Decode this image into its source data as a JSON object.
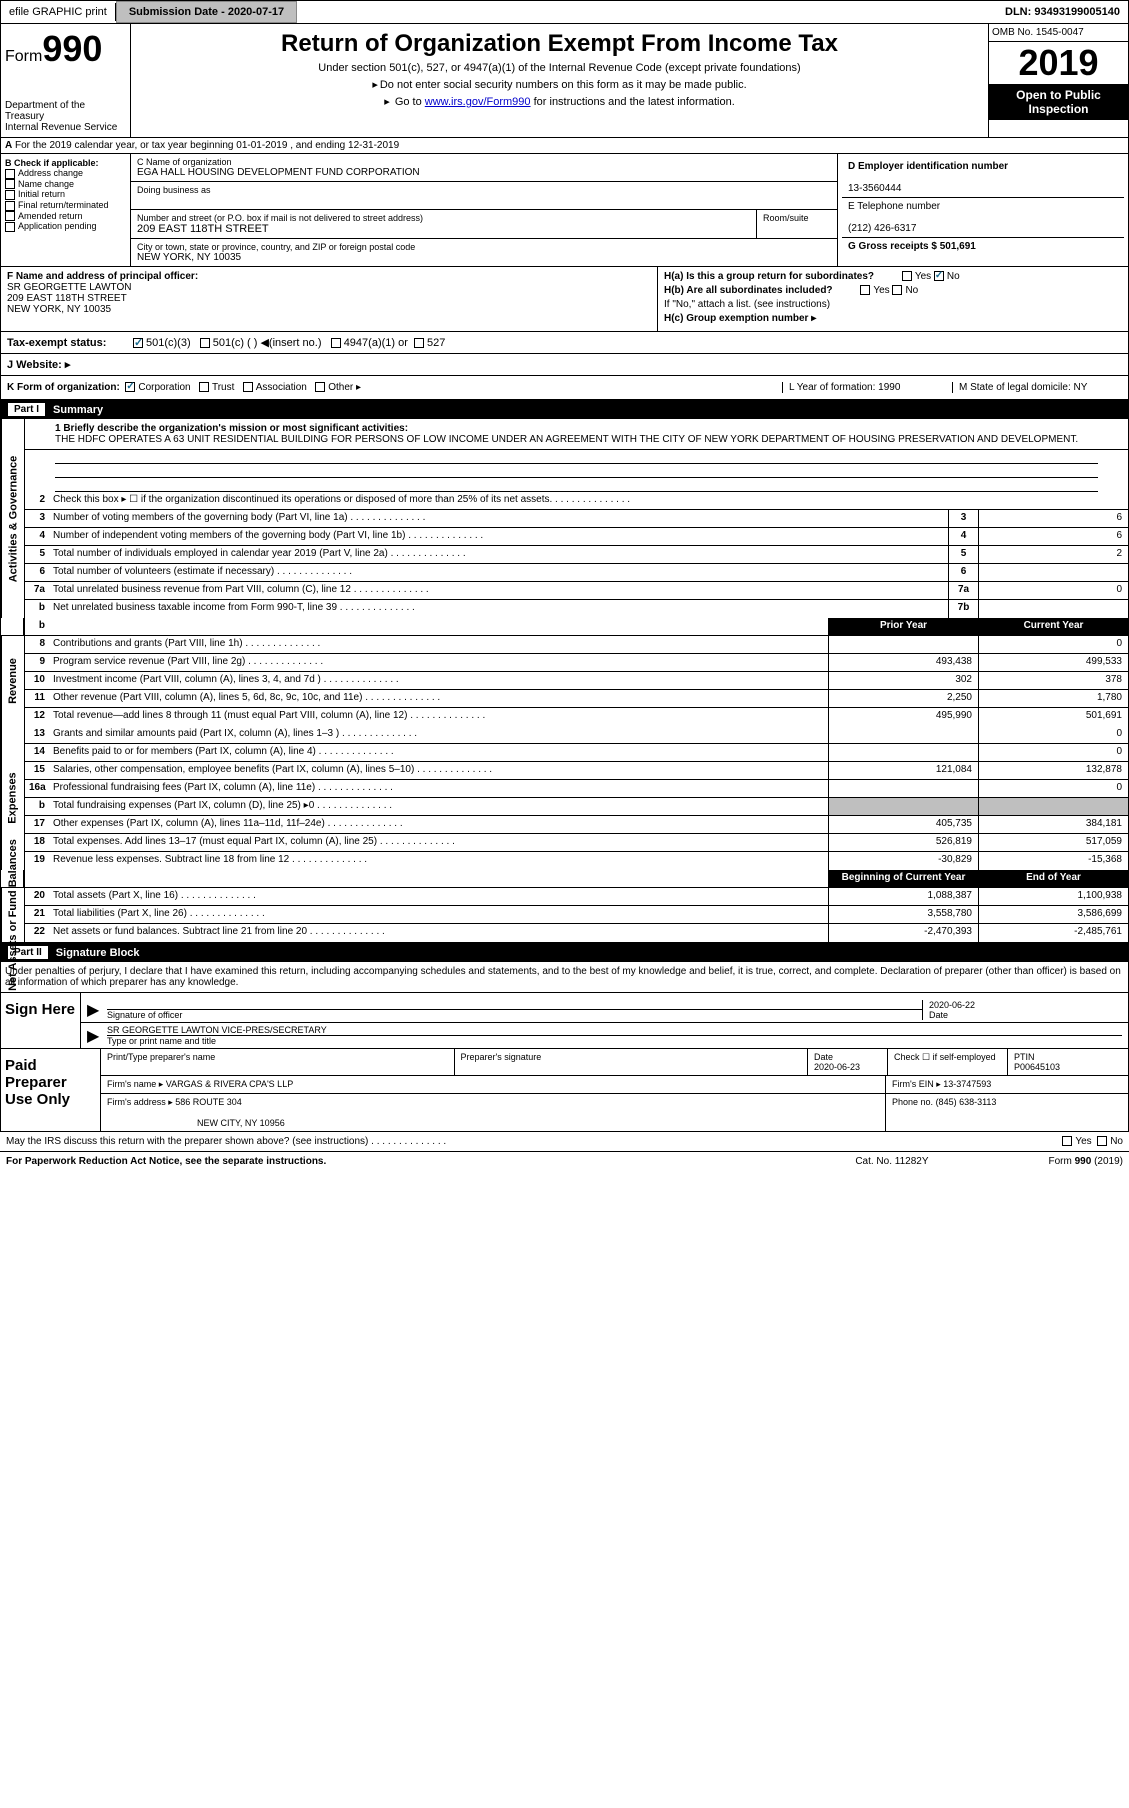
{
  "topbar": {
    "efile": "efile GRAPHIC print",
    "submission_label": "Submission Date - 2020-07-17",
    "dln": "DLN: 93493199005140"
  },
  "header": {
    "form_prefix": "Form",
    "form_num": "990",
    "dept1": "Department of the Treasury",
    "dept2": "Internal Revenue Service",
    "title": "Return of Organization Exempt From Income Tax",
    "sub1": "Under section 501(c), 527, or 4947(a)(1) of the Internal Revenue Code (except private foundations)",
    "sub2": "Do not enter social security numbers on this form as it may be made public.",
    "sub3_pre": "Go to ",
    "sub3_link": "www.irs.gov/Form990",
    "sub3_post": " for instructions and the latest information.",
    "omb": "OMB No. 1545-0047",
    "year": "2019",
    "inspection": "Open to Public Inspection"
  },
  "section_a": "For the 2019 calendar year, or tax year beginning 01-01-2019   , and ending 12-31-2019",
  "section_b": {
    "header": "B Check if applicable:",
    "items": [
      "Address change",
      "Name change",
      "Initial return",
      "Final return/terminated",
      "Amended return",
      "Application pending"
    ]
  },
  "section_c": {
    "name_label": "C Name of organization",
    "name": "EGA HALL HOUSING DEVELOPMENT FUND CORPORATION",
    "dba_label": "Doing business as",
    "addr_label": "Number and street (or P.O. box if mail is not delivered to street address)",
    "room_label": "Room/suite",
    "addr": "209 EAST 118TH STREET",
    "city_label": "City or town, state or province, country, and ZIP or foreign postal code",
    "city": "NEW YORK, NY  10035"
  },
  "section_d": {
    "ein_label": "D Employer identification number",
    "ein": "13-3560444",
    "phone_label": "E Telephone number",
    "phone": "(212) 426-6317",
    "gross_label": "G Gross receipts $ 501,691"
  },
  "section_f": {
    "label": "F  Name and address of principal officer:",
    "name": "SR GEORGETTE LAWTON",
    "addr": "209 EAST 118TH STREET",
    "city": "NEW YORK, NY 10035"
  },
  "section_h": {
    "ha": "H(a)  Is this a group return for subordinates?",
    "hb": "H(b)  Are all subordinates included?",
    "hb_note": "If \"No,\" attach a list. (see instructions)",
    "hc": "H(c)  Group exemption number ▸",
    "yes": "Yes",
    "no": "No"
  },
  "section_i": {
    "label": "Tax-exempt status:",
    "opts": [
      "501(c)(3)",
      "501(c) (  ) ◀(insert no.)",
      "4947(a)(1) or",
      "527"
    ]
  },
  "section_j": {
    "label": "J   Website: ▸"
  },
  "section_k": {
    "label": "K Form of organization:",
    "opts": [
      "Corporation",
      "Trust",
      "Association",
      "Other ▸"
    ],
    "l": "L Year of formation: 1990",
    "m": "M State of legal domicile: NY"
  },
  "part1": {
    "num": "Part I",
    "title": "Summary"
  },
  "mission": {
    "label": "1  Briefly describe the organization's mission or most significant activities:",
    "text": "THE HDFC OPERATES A 63 UNIT RESIDENTIAL BUILDING FOR PERSONS OF LOW INCOME UNDER AN AGREEMENT WITH THE CITY OF NEW YORK DEPARTMENT OF HOUSING PRESERVATION AND DEVELOPMENT."
  },
  "gov_rows": [
    {
      "n": "2",
      "t": "Check this box ▸ ☐ if the organization discontinued its operations or disposed of more than 25% of its net assets.",
      "box": "",
      "v": ""
    },
    {
      "n": "3",
      "t": "Number of voting members of the governing body (Part VI, line 1a)",
      "box": "3",
      "v": "6"
    },
    {
      "n": "4",
      "t": "Number of independent voting members of the governing body (Part VI, line 1b)",
      "box": "4",
      "v": "6"
    },
    {
      "n": "5",
      "t": "Total number of individuals employed in calendar year 2019 (Part V, line 2a)",
      "box": "5",
      "v": "2"
    },
    {
      "n": "6",
      "t": "Total number of volunteers (estimate if necessary)",
      "box": "6",
      "v": ""
    },
    {
      "n": "7a",
      "t": "Total unrelated business revenue from Part VIII, column (C), line 12",
      "box": "7a",
      "v": "0"
    },
    {
      "n": "b",
      "t": "Net unrelated business taxable income from Form 990-T, line 39",
      "box": "7b",
      "v": ""
    }
  ],
  "col_hdrs": {
    "prior": "Prior Year",
    "current": "Current Year"
  },
  "sides": {
    "gov": "Activities & Governance",
    "rev": "Revenue",
    "exp": "Expenses",
    "net": "Net Assets or Fund Balances"
  },
  "rev_rows": [
    {
      "n": "8",
      "t": "Contributions and grants (Part VIII, line 1h)",
      "p": "",
      "c": "0"
    },
    {
      "n": "9",
      "t": "Program service revenue (Part VIII, line 2g)",
      "p": "493,438",
      "c": "499,533"
    },
    {
      "n": "10",
      "t": "Investment income (Part VIII, column (A), lines 3, 4, and 7d )",
      "p": "302",
      "c": "378"
    },
    {
      "n": "11",
      "t": "Other revenue (Part VIII, column (A), lines 5, 6d, 8c, 9c, 10c, and 11e)",
      "p": "2,250",
      "c": "1,780"
    },
    {
      "n": "12",
      "t": "Total revenue—add lines 8 through 11 (must equal Part VIII, column (A), line 12)",
      "p": "495,990",
      "c": "501,691"
    }
  ],
  "exp_rows": [
    {
      "n": "13",
      "t": "Grants and similar amounts paid (Part IX, column (A), lines 1–3 )",
      "p": "",
      "c": "0"
    },
    {
      "n": "14",
      "t": "Benefits paid to or for members (Part IX, column (A), line 4)",
      "p": "",
      "c": "0"
    },
    {
      "n": "15",
      "t": "Salaries, other compensation, employee benefits (Part IX, column (A), lines 5–10)",
      "p": "121,084",
      "c": "132,878"
    },
    {
      "n": "16a",
      "t": "Professional fundraising fees (Part IX, column (A), line 11e)",
      "p": "",
      "c": "0"
    },
    {
      "n": "b",
      "t": "Total fundraising expenses (Part IX, column (D), line 25) ▸0",
      "p": "grey",
      "c": "grey"
    },
    {
      "n": "17",
      "t": "Other expenses (Part IX, column (A), lines 11a–11d, 11f–24e)",
      "p": "405,735",
      "c": "384,181"
    },
    {
      "n": "18",
      "t": "Total expenses. Add lines 13–17 (must equal Part IX, column (A), line 25)",
      "p": "526,819",
      "c": "517,059"
    },
    {
      "n": "19",
      "t": "Revenue less expenses. Subtract line 18 from line 12",
      "p": "-30,829",
      "c": "-15,368"
    }
  ],
  "net_hdrs": {
    "begin": "Beginning of Current Year",
    "end": "End of Year"
  },
  "net_rows": [
    {
      "n": "20",
      "t": "Total assets (Part X, line 16)",
      "p": "1,088,387",
      "c": "1,100,938"
    },
    {
      "n": "21",
      "t": "Total liabilities (Part X, line 26)",
      "p": "3,558,780",
      "c": "3,586,699"
    },
    {
      "n": "22",
      "t": "Net assets or fund balances. Subtract line 21 from line 20",
      "p": "-2,470,393",
      "c": "-2,485,761"
    }
  ],
  "part2": {
    "num": "Part II",
    "title": "Signature Block"
  },
  "sig": {
    "intro": "Under penalties of perjury, I declare that I have examined this return, including accompanying schedules and statements, and to the best of my knowledge and belief, it is true, correct, and complete. Declaration of preparer (other than officer) is based on all information of which preparer has any knowledge.",
    "sign_here": "Sign Here",
    "officer_sig": "Signature of officer",
    "date": "Date",
    "date_val": "2020-06-22",
    "officer_name": "SR GEORGETTE LAWTON  VICE-PRES/SECRETARY",
    "type_label": "Type or print name and title"
  },
  "prep": {
    "title": "Paid Preparer Use Only",
    "name_label": "Print/Type preparer's name",
    "sig_label": "Preparer's signature",
    "date_label": "Date",
    "date_val": "2020-06-23",
    "check_label": "Check ☐ if self-employed",
    "ptin_label": "PTIN",
    "ptin": "P00645103",
    "firm_name_label": "Firm's name   ▸",
    "firm_name": "VARGAS & RIVERA CPA'S LLP",
    "firm_ein_label": "Firm's EIN ▸",
    "firm_ein": "13-3747593",
    "firm_addr_label": "Firm's address ▸",
    "firm_addr": "586 ROUTE 304",
    "firm_city": "NEW CITY, NY  10956",
    "phone_label": "Phone no.",
    "phone": "(845) 638-3113"
  },
  "discuss": {
    "text": "May the IRS discuss this return with the preparer shown above? (see instructions)",
    "yes": "Yes",
    "no": "No"
  },
  "footer": {
    "left": "For Paperwork Reduction Act Notice, see the separate instructions.",
    "mid": "Cat. No. 11282Y",
    "right": "Form 990 (2019)"
  }
}
